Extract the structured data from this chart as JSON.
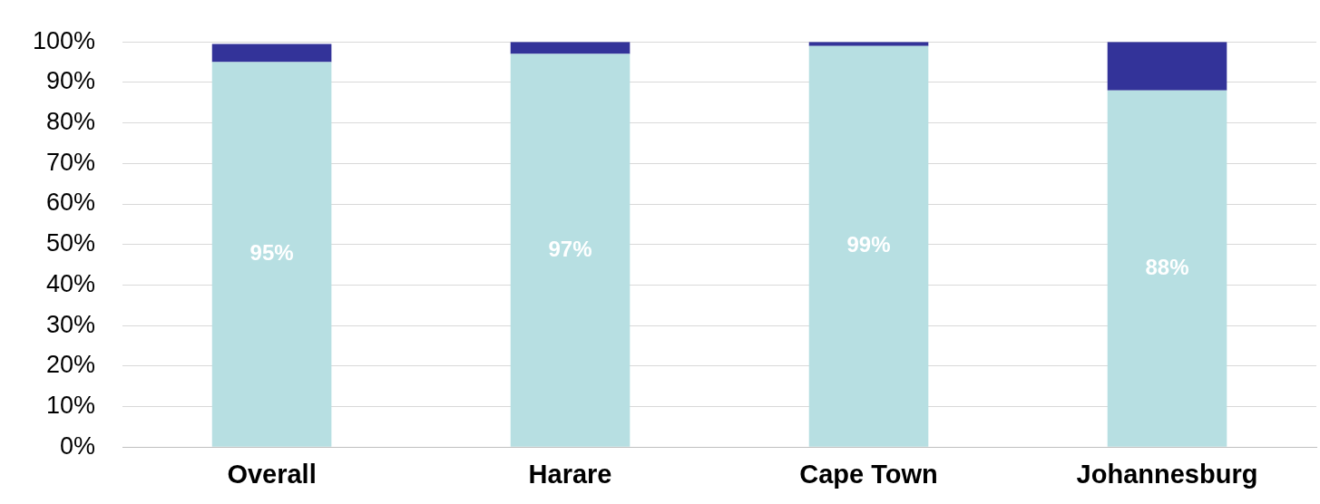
{
  "chart_data": {
    "type": "bar",
    "stacked": true,
    "categories": [
      "Overall",
      "Harare",
      "Cape Town",
      "Johannesburg"
    ],
    "series": [
      {
        "color": "#b7dfe2",
        "values": [
          95,
          97,
          99,
          88
        ],
        "value_labels": [
          "95%",
          "97%",
          "99%",
          "88%"
        ]
      },
      {
        "color": "#333399",
        "values": [
          4.5,
          3,
          1,
          12
        ]
      }
    ],
    "ylim": [
      0,
      100
    ],
    "yticks": [
      {
        "value": 0,
        "label": "0%"
      },
      {
        "value": 10,
        "label": "10%"
      },
      {
        "value": 20,
        "label": "20%"
      },
      {
        "value": 30,
        "label": "30%"
      },
      {
        "value": 40,
        "label": "40%"
      },
      {
        "value": 50,
        "label": "50%"
      },
      {
        "value": 60,
        "label": "60%"
      },
      {
        "value": 70,
        "label": "70%"
      },
      {
        "value": 80,
        "label": "80%"
      },
      {
        "value": 90,
        "label": "90%"
      },
      {
        "value": 100,
        "label": "100%"
      }
    ],
    "grid": "y",
    "legend": false
  }
}
